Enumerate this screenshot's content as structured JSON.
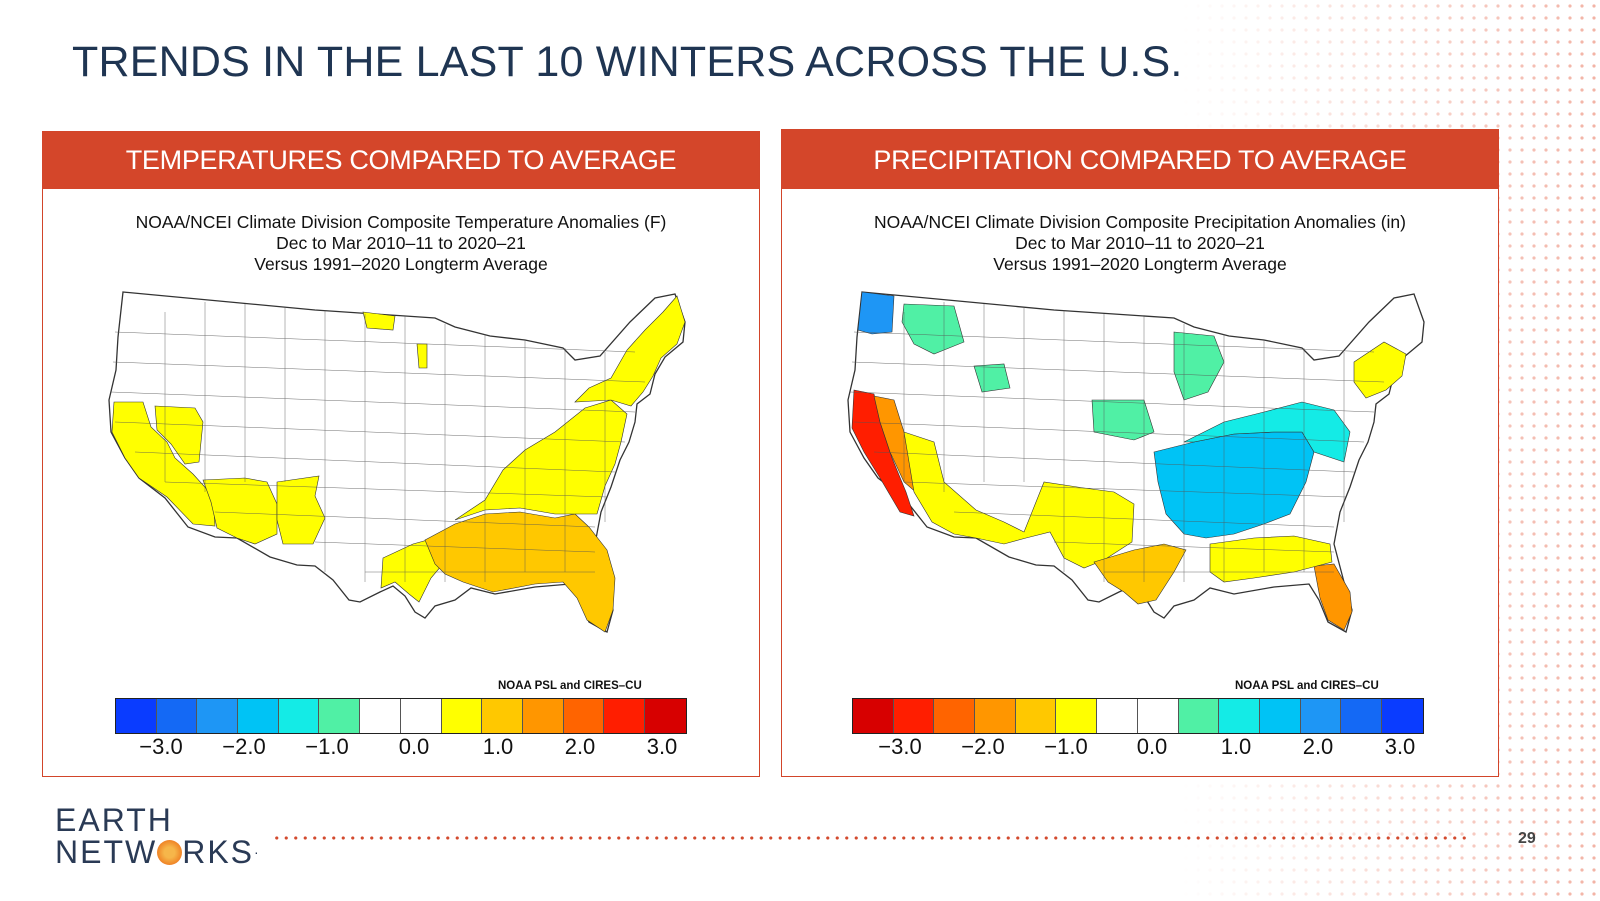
{
  "slide": {
    "title": "TRENDS IN THE LAST 10 WINTERS ACROSS THE U.S.",
    "page_number": "29",
    "logo": {
      "line1": "EARTH",
      "line2a": "NETW",
      "line2b": "RKS",
      "tm": "·"
    }
  },
  "colors": {
    "accent": "#d4462a",
    "title": "#1f3552"
  },
  "panels": [
    {
      "header": "TEMPERATURES COMPARED TO AVERAGE",
      "chart_title_lines": [
        "NOAA/NCEI Climate Division Composite Temperature Anomalies (F)",
        "Dec to Mar 2010–11 to 2020–21",
        "Versus 1991–2020 Longterm Average"
      ],
      "credit": "NOAA PSL and CIRES–CU",
      "colorbar_colors": [
        "#0a3cff",
        "#1469f5",
        "#1e96f5",
        "#00c3f5",
        "#14ebe6",
        "#50f0a5",
        "#ffffff",
        "#ffffff",
        "#ffff00",
        "#ffc800",
        "#ff9600",
        "#ff6400",
        "#ff1e00",
        "#d70000"
      ],
      "tick_labels": [
        "−3.0",
        "−2.0",
        "−1.0",
        "0.0",
        "1.0",
        "2.0",
        "3.0"
      ],
      "map_regions": [
        {
          "region": "California",
          "color": "#ffff00"
        },
        {
          "region": "Nevada South",
          "color": "#ffff00"
        },
        {
          "region": "Arizona",
          "color": "#ffff00"
        },
        {
          "region": "New Mexico",
          "color": "#ffff00"
        },
        {
          "region": "Texas Coast",
          "color": "#ffff00"
        },
        {
          "region": "Gulf Coast",
          "color": "#ffc800"
        },
        {
          "region": "Southeast",
          "color": "#ffc800"
        },
        {
          "region": "Florida",
          "color": "#ffc800"
        },
        {
          "region": "Ohio Valley & Mid-Atlantic",
          "color": "#ffff00"
        },
        {
          "region": "Northeast",
          "color": "#ffff00"
        }
      ]
    },
    {
      "header": "PRECIPITATION COMPARED TO AVERAGE",
      "chart_title_lines": [
        "NOAA/NCEI Climate Division Composite Precipitation Anomalies (in)",
        "Dec to Mar 2010–11 to 2020–21",
        "Versus 1991–2020 Longterm Average"
      ],
      "credit": "NOAA PSL and CIRES–CU",
      "colorbar_colors": [
        "#d70000",
        "#ff1e00",
        "#ff6400",
        "#ff9600",
        "#ffc800",
        "#ffff00",
        "#ffffff",
        "#ffffff",
        "#50f0a5",
        "#14ebe6",
        "#00c3f5",
        "#1e96f5",
        "#1469f5",
        "#0a3cff"
      ],
      "tick_labels": [
        "−3.0",
        "−2.0",
        "−1.0",
        "0.0",
        "1.0",
        "2.0",
        "3.0"
      ],
      "map_regions": [
        {
          "region": "Washington Coast",
          "color": "#1e96f5"
        },
        {
          "region": "Northern Rockies",
          "color": "#50f0a5"
        },
        {
          "region": "California Coast",
          "color": "#ff1e00"
        },
        {
          "region": "California Central",
          "color": "#ff9600"
        },
        {
          "region": "Southwest",
          "color": "#ffff00"
        },
        {
          "region": "Texas",
          "color": "#ffff00"
        },
        {
          "region": "Texas Coast",
          "color": "#ffc800"
        },
        {
          "region": "Mississippi & Tennessee Valley",
          "color": "#00c3f5"
        },
        {
          "region": "Ohio Valley",
          "color": "#14ebe6"
        },
        {
          "region": "Upper Midwest",
          "color": "#50f0a5"
        },
        {
          "region": "Florida",
          "color": "#ff9600"
        },
        {
          "region": "Northeast",
          "color": "#ffff00"
        }
      ]
    }
  ]
}
